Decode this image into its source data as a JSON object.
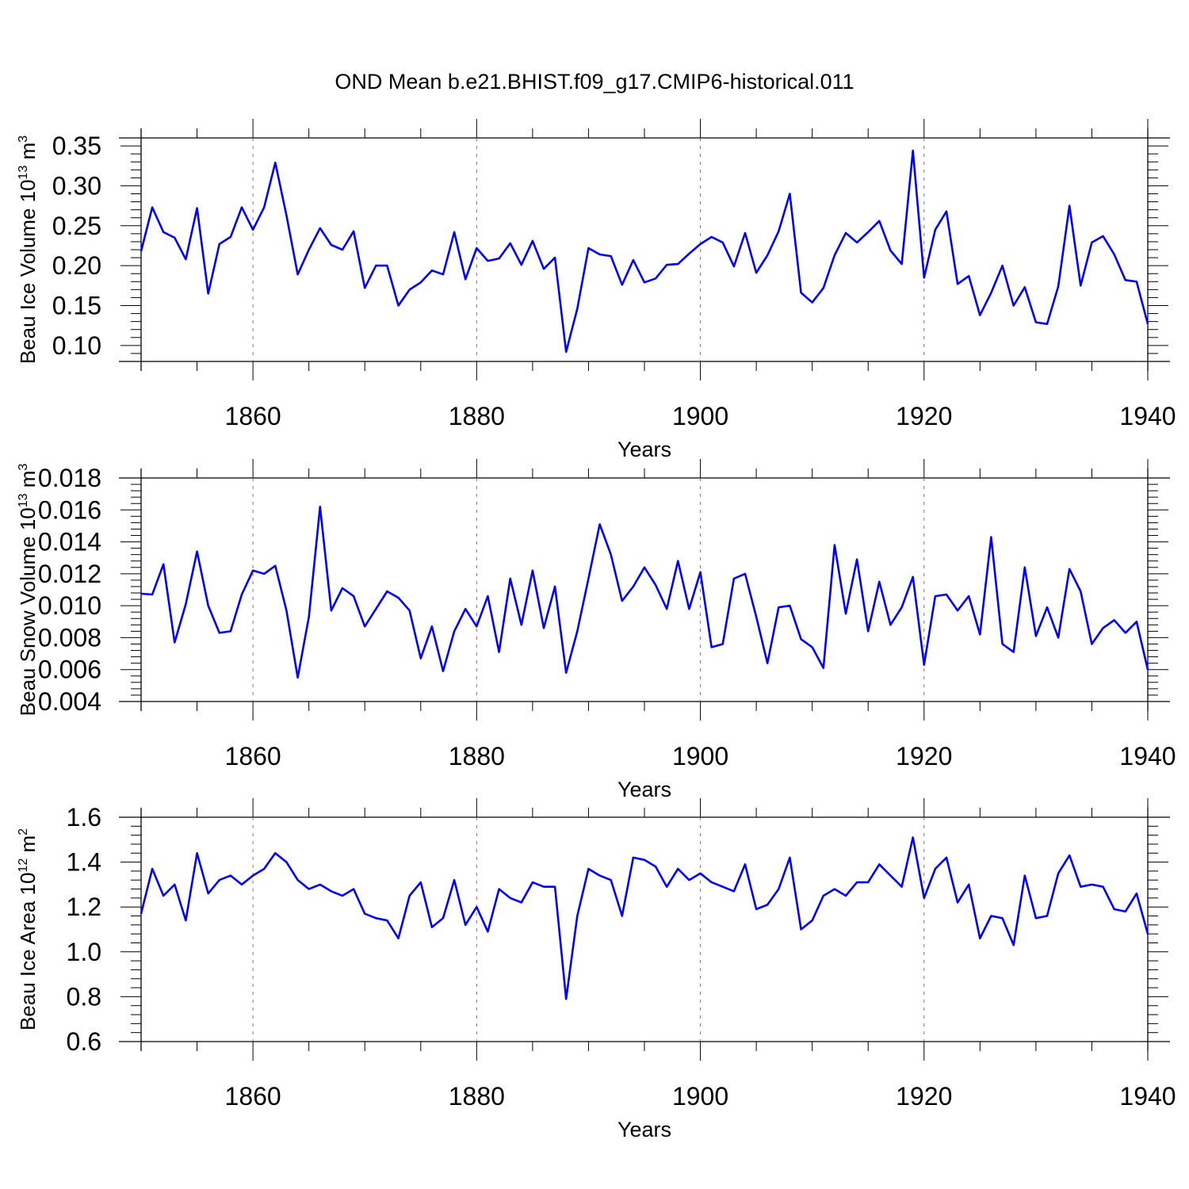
{
  "title": "OND Mean b.e21.BHIST.f09_g17.CMIP6-historical.011",
  "series_color": "#0000ff",
  "chart_data": [
    {
      "type": "line",
      "ylabel": "Beau Ice Volume 10^13 m^3",
      "ylabel_parts": {
        "base": "Beau Ice Volume 10",
        "exp": "13",
        "unit": " m",
        "unit_exp": "3"
      },
      "xlabel": "Years",
      "xlim": [
        1850,
        1940
      ],
      "ylim": [
        0.08,
        0.36
      ],
      "yticks": [
        0.1,
        0.15,
        0.2,
        0.25,
        0.3,
        0.35
      ],
      "ytick_labels": [
        "0.10",
        "0.15",
        "0.20",
        "0.25",
        "0.30",
        "0.35"
      ],
      "xticks": [
        1860,
        1880,
        1900,
        1920,
        1940
      ],
      "xtick_labels": [
        "1860",
        "1880",
        "1900",
        "1920",
        "1940"
      ],
      "grid": "dashed vertical at major x ticks",
      "x_start": 1850,
      "values": [
        0.218,
        0.273,
        0.242,
        0.235,
        0.208,
        0.272,
        0.165,
        0.227,
        0.236,
        0.273,
        0.245,
        0.273,
        0.329,
        0.263,
        0.189,
        0.22,
        0.247,
        0.226,
        0.22,
        0.243,
        0.172,
        0.2,
        0.2,
        0.15,
        0.17,
        0.179,
        0.194,
        0.189,
        0.242,
        0.183,
        0.222,
        0.206,
        0.209,
        0.228,
        0.201,
        0.231,
        0.196,
        0.21,
        0.092,
        0.146,
        0.222,
        0.214,
        0.212,
        0.176,
        0.207,
        0.179,
        0.184,
        0.201,
        0.202,
        0.215,
        0.227,
        0.236,
        0.229,
        0.199,
        0.241,
        0.191,
        0.213,
        0.243,
        0.29,
        0.166,
        0.154,
        0.172,
        0.213,
        0.241,
        0.229,
        0.242,
        0.256,
        0.219,
        0.202,
        0.344,
        0.185,
        0.245,
        0.268,
        0.177,
        0.187,
        0.138,
        0.166,
        0.2,
        0.15,
        0.173,
        0.129,
        0.127,
        0.174,
        0.275,
        0.175,
        0.229,
        0.237,
        0.214,
        0.182,
        0.18,
        0.127
      ]
    },
    {
      "type": "line",
      "ylabel": "Beau Snow Volume 10^13 m^3",
      "ylabel_parts": {
        "base": "Beau Snow Volume 10",
        "exp": "13",
        "unit": " m",
        "unit_exp": "3"
      },
      "xlabel": "Years",
      "xlim": [
        1850,
        1940
      ],
      "ylim": [
        0.004,
        0.018
      ],
      "yticks": [
        0.004,
        0.006,
        0.008,
        0.01,
        0.012,
        0.014,
        0.016,
        0.018
      ],
      "ytick_labels": [
        "0.004",
        "0.006",
        "0.008",
        "0.010",
        "0.012",
        "0.014",
        "0.016",
        "0.018"
      ],
      "xticks": [
        1860,
        1880,
        1900,
        1920,
        1940
      ],
      "xtick_labels": [
        "1860",
        "1880",
        "1900",
        "1920",
        "1940"
      ],
      "grid": "dashed vertical at major x ticks",
      "x_start": 1850,
      "values": [
        0.01075,
        0.0107,
        0.0126,
        0.0077,
        0.0101,
        0.0134,
        0.01,
        0.0083,
        0.0084,
        0.0107,
        0.0122,
        0.012,
        0.0125,
        0.0097,
        0.0055,
        0.0093,
        0.0162,
        0.0097,
        0.0111,
        0.0106,
        0.0087,
        0.0098,
        0.0109,
        0.0105,
        0.0097,
        0.0067,
        0.0087,
        0.0059,
        0.0084,
        0.0098,
        0.0087,
        0.0106,
        0.0071,
        0.0117,
        0.0088,
        0.0122,
        0.0086,
        0.0112,
        0.0058,
        0.0084,
        0.0117,
        0.0151,
        0.0132,
        0.0103,
        0.0112,
        0.0124,
        0.0113,
        0.0098,
        0.0128,
        0.0098,
        0.0121,
        0.0074,
        0.0076,
        0.0117,
        0.012,
        0.0093,
        0.0064,
        0.0099,
        0.01,
        0.0079,
        0.0074,
        0.0061,
        0.0138,
        0.0095,
        0.0129,
        0.0084,
        0.0115,
        0.0088,
        0.0099,
        0.0118,
        0.0063,
        0.0106,
        0.0107,
        0.0097,
        0.0106,
        0.0082,
        0.0143,
        0.0076,
        0.0071,
        0.0124,
        0.0081,
        0.0099,
        0.008,
        0.0123,
        0.0109,
        0.0076,
        0.0086,
        0.0091,
        0.0083,
        0.009,
        0.006
      ]
    },
    {
      "type": "line",
      "ylabel": "Beau Ice Area 10^12 m^2",
      "ylabel_parts": {
        "base": "Beau Ice Area 10",
        "exp": "12",
        "unit": " m",
        "unit_exp": "2"
      },
      "xlabel": "Years",
      "xlim": [
        1850,
        1940
      ],
      "ylim": [
        0.6,
        1.6
      ],
      "yticks": [
        0.6,
        0.8,
        1.0,
        1.2,
        1.4,
        1.6
      ],
      "ytick_labels": [
        "0.6",
        "0.8",
        "1.0",
        "1.2",
        "1.4",
        "1.6"
      ],
      "xticks": [
        1860,
        1880,
        1900,
        1920,
        1940
      ],
      "xtick_labels": [
        "1860",
        "1880",
        "1900",
        "1920",
        "1940"
      ],
      "grid": "dashed vertical at major x ticks",
      "x_start": 1850,
      "values": [
        1.17,
        1.37,
        1.25,
        1.3,
        1.14,
        1.44,
        1.26,
        1.32,
        1.34,
        1.3,
        1.34,
        1.37,
        1.44,
        1.4,
        1.32,
        1.28,
        1.3,
        1.27,
        1.25,
        1.28,
        1.17,
        1.15,
        1.14,
        1.06,
        1.25,
        1.31,
        1.11,
        1.15,
        1.32,
        1.12,
        1.2,
        1.09,
        1.28,
        1.24,
        1.22,
        1.31,
        1.29,
        1.29,
        0.79,
        1.16,
        1.37,
        1.34,
        1.32,
        1.16,
        1.42,
        1.41,
        1.38,
        1.29,
        1.37,
        1.32,
        1.35,
        1.31,
        1.29,
        1.27,
        1.39,
        1.19,
        1.21,
        1.28,
        1.42,
        1.1,
        1.14,
        1.25,
        1.28,
        1.25,
        1.31,
        1.31,
        1.39,
        1.34,
        1.29,
        1.51,
        1.24,
        1.37,
        1.42,
        1.22,
        1.3,
        1.06,
        1.16,
        1.15,
        1.03,
        1.34,
        1.15,
        1.16,
        1.35,
        1.43,
        1.29,
        1.3,
        1.29,
        1.19,
        1.18,
        1.26,
        1.08
      ]
    }
  ]
}
